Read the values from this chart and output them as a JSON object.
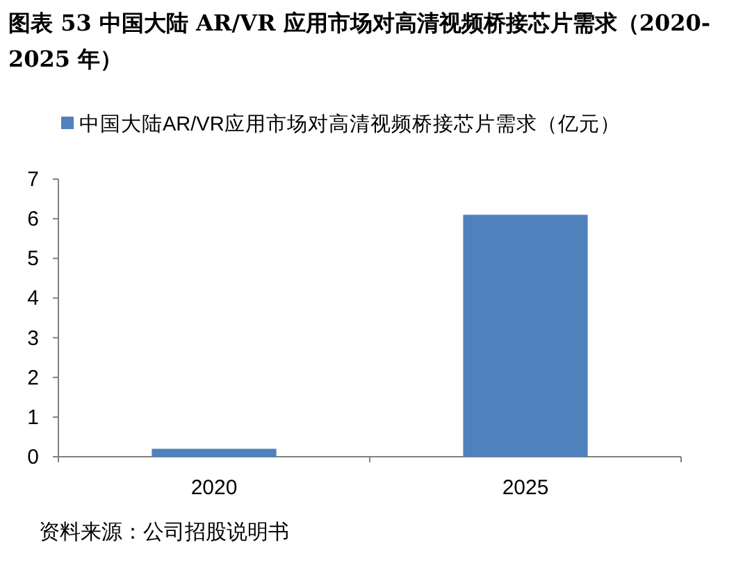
{
  "chart_data": {
    "type": "bar",
    "title": "图表 53 中国大陆 AR/VR 应用市场对高清视频桥接芯片需求（2020-2025 年）",
    "categories": [
      "2020",
      "2025"
    ],
    "series": [
      {
        "name": "中国大陆AR/VR应用市场对高清视频桥接芯片需求（亿元）",
        "color": "#4f81bd",
        "values": [
          0.2,
          6.1
        ]
      }
    ],
    "ylim": [
      0,
      7
    ],
    "yticks": [
      0,
      1,
      2,
      3,
      4,
      5,
      6,
      7
    ],
    "grid": false,
    "legend": "top",
    "annotations": [
      "资料来源：公司招股说明书"
    ]
  }
}
